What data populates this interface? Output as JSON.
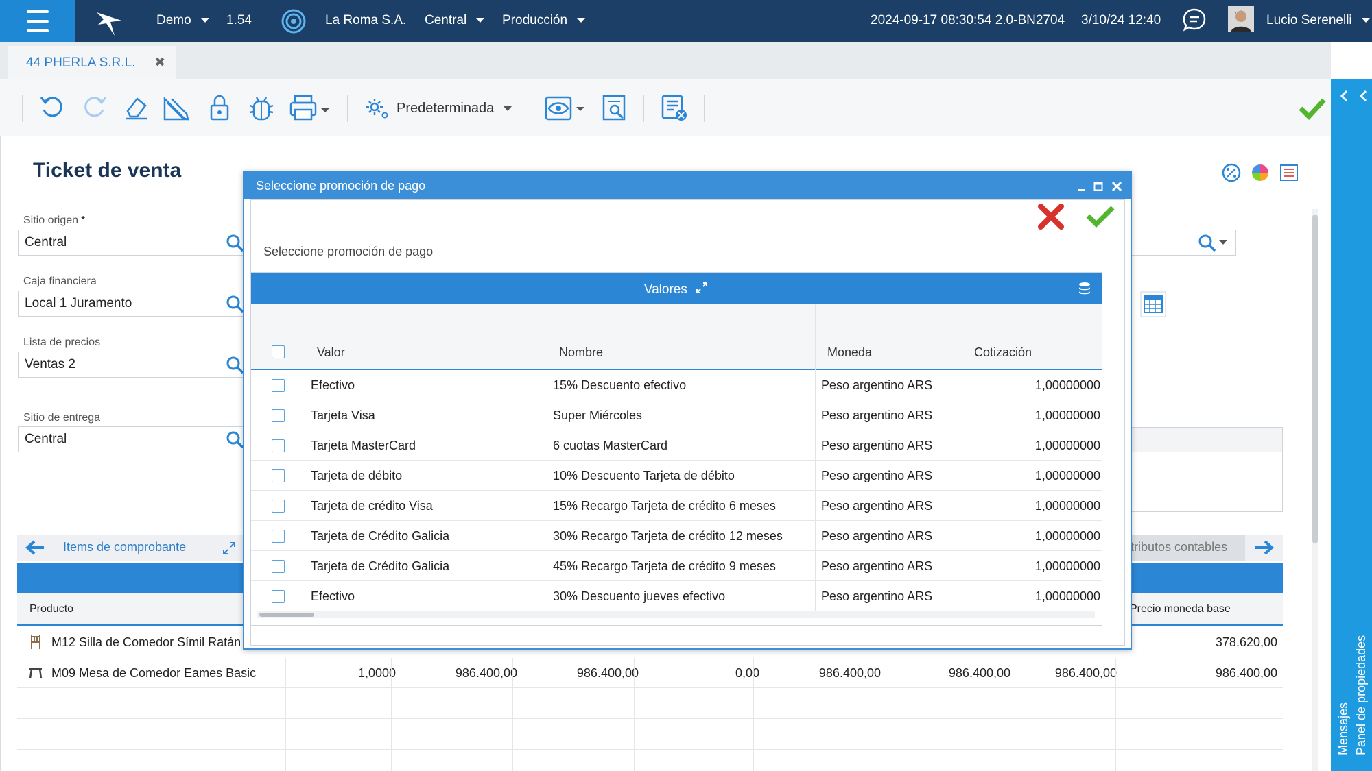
{
  "topbar": {
    "env": "Demo",
    "version": "1.54",
    "company": "La Roma S.A.",
    "site": "Central",
    "area": "Producción",
    "build": "2024-09-17 08:30:54 2.0-BN2704",
    "datetime": "3/10/24 12:40",
    "user": "Lucio Serenelli"
  },
  "tabs": [
    {
      "label": "44 PHERLA S.R.L.",
      "close": "✖"
    }
  ],
  "toolbar": {
    "view_label": "Predeterminada"
  },
  "page": {
    "title": "Ticket de venta"
  },
  "form": {
    "sitio_origen_label": "Sitio origen",
    "required_mark": "*",
    "sitio_origen_value": "Central",
    "caja_label": "Caja financiera",
    "caja_value": "Local 1 Juramento",
    "lista_label": "Lista de precios",
    "lista_value": "Ventas 2",
    "entrega_label": "Sitio de entrega",
    "entrega_value": "Central"
  },
  "items_tab": {
    "title": "Items de comprobante",
    "right_tab": "tributos contables",
    "col_producto": "Producto",
    "col_precio_base": "Precio moneda base",
    "rows": [
      {
        "producto": "M12 Silla de Comedor Símil Ratán",
        "c1": "",
        "c2": "",
        "c3": "",
        "c4": "",
        "c5": "",
        "c6": "",
        "c7": "",
        "precio_base": "378.620,00"
      },
      {
        "producto": "M09 Mesa de Comedor Eames Basic",
        "c1": "1,0000",
        "c2": "986.400,00",
        "c3": "986.400,00",
        "c4": "0,00",
        "c5": "986.400,00",
        "c6": "986.400,00",
        "c7": "986.400,00",
        "precio_base": "986.400,00"
      }
    ]
  },
  "modal": {
    "title": "Seleccione promoción de pago",
    "subtitle": "Seleccione promoción de pago",
    "grid_title": "Valores",
    "columns": {
      "valor": "Valor",
      "nombre": "Nombre",
      "moneda": "Moneda",
      "cotizacion": "Cotización"
    },
    "rows": [
      {
        "valor": "Efectivo",
        "nombre": "15% Descuento efectivo",
        "moneda": "Peso argentino ARS",
        "cotizacion": "1,00000000"
      },
      {
        "valor": "Tarjeta Visa",
        "nombre": "Super Miércoles",
        "moneda": "Peso argentino ARS",
        "cotizacion": "1,00000000"
      },
      {
        "valor": "Tarjeta MasterCard",
        "nombre": "6 cuotas MasterCard",
        "moneda": "Peso argentino ARS",
        "cotizacion": "1,00000000"
      },
      {
        "valor": "Tarjeta de débito",
        "nombre": "10% Descuento Tarjeta de débito",
        "moneda": "Peso argentino ARS",
        "cotizacion": "1,00000000"
      },
      {
        "valor": "Tarjeta de crédito Visa",
        "nombre": "15% Recargo Tarjeta de crédito 6 meses",
        "moneda": "Peso argentino ARS",
        "cotizacion": "1,00000000"
      },
      {
        "valor": "Tarjeta de Crédito Galicia",
        "nombre": "30% Recargo Tarjeta de crédito 12 meses",
        "moneda": "Peso argentino ARS",
        "cotizacion": "1,00000000"
      },
      {
        "valor": "Tarjeta de Crédito Galicia",
        "nombre": "45% Recargo Tarjeta de crédito 9 meses",
        "moneda": "Peso argentino ARS",
        "cotizacion": "1,00000000"
      },
      {
        "valor": "Efectivo",
        "nombre": "30% Descuento jueves efectivo",
        "moneda": "Peso argentino ARS",
        "cotizacion": "1,00000000"
      }
    ]
  },
  "sidepanel": {
    "messages": "Mensajes",
    "properties": "Panel de propiedades"
  },
  "colors": {
    "topbar": "#1b3f66",
    "accent": "#2c86d6",
    "side": "#1e9ae0",
    "ok": "#52b52d",
    "cancel": "#d8322c"
  }
}
